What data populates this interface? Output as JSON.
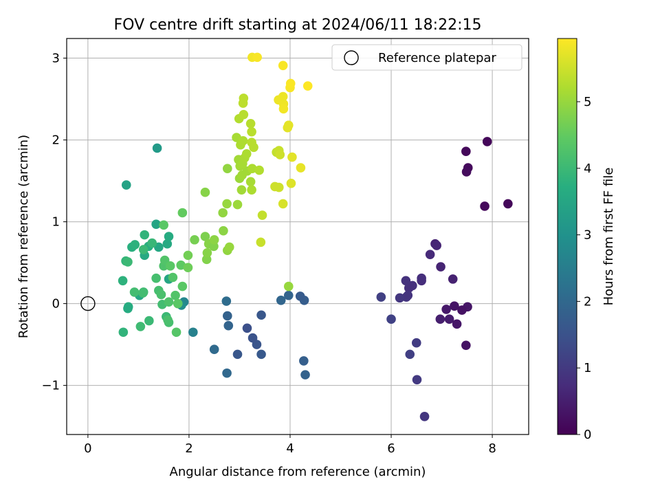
{
  "chart_data": {
    "type": "scatter",
    "title": "FOV centre drift starting at 2024/06/11 18:22:15",
    "xlabel": "Angular distance from reference (arcmin)",
    "ylabel": "Rotation from reference (arcmin)",
    "xlim": [
      -0.42,
      8.72
    ],
    "ylim": [
      -1.6,
      3.24
    ],
    "xticks": [
      "0",
      "2",
      "4",
      "6",
      "8"
    ],
    "yticks": [
      "−1",
      "0",
      "1",
      "2",
      "3"
    ],
    "grid": true,
    "legend": {
      "placement": "top-right",
      "entries": [
        {
          "label": "Reference platepar",
          "marker": "open-circle"
        }
      ]
    },
    "reference_point": {
      "x": 0,
      "y": 0
    },
    "colorbar": {
      "label": "Hours from first FF file",
      "colormap": "viridis",
      "range": [
        0,
        5.95
      ],
      "ticks": [
        "0",
        "1",
        "2",
        "3",
        "4",
        "5"
      ]
    },
    "color_label": "Hours from first FF file",
    "points": [
      {
        "x": 7.9,
        "y": 1.98,
        "t": 0.1
      },
      {
        "x": 7.48,
        "y": 1.86,
        "t": 0.12
      },
      {
        "x": 7.52,
        "y": 1.66,
        "t": 0.15
      },
      {
        "x": 7.49,
        "y": 1.61,
        "t": 0.18
      },
      {
        "x": 8.31,
        "y": 1.22,
        "t": 0.1
      },
      {
        "x": 7.85,
        "y": 1.19,
        "t": 0.14
      },
      {
        "x": 7.48,
        "y": -0.51,
        "t": 0.3
      },
      {
        "x": 7.51,
        "y": -0.04,
        "t": 0.35
      },
      {
        "x": 7.4,
        "y": -0.08,
        "t": 0.28
      },
      {
        "x": 7.25,
        "y": -0.03,
        "t": 0.32
      },
      {
        "x": 7.09,
        "y": -0.07,
        "t": 0.4
      },
      {
        "x": 7.15,
        "y": -0.19,
        "t": 0.45
      },
      {
        "x": 7.3,
        "y": -0.25,
        "t": 0.38
      },
      {
        "x": 6.97,
        "y": -0.19,
        "t": 0.5
      },
      {
        "x": 7.22,
        "y": 0.3,
        "t": 0.55
      },
      {
        "x": 6.98,
        "y": 0.45,
        "t": 0.6
      },
      {
        "x": 6.87,
        "y": 0.73,
        "t": 0.58
      },
      {
        "x": 6.9,
        "y": 0.71,
        "t": 0.62
      },
      {
        "x": 6.77,
        "y": 0.6,
        "t": 0.7
      },
      {
        "x": 6.6,
        "y": 0.28,
        "t": 0.75
      },
      {
        "x": 6.6,
        "y": 0.31,
        "t": 0.78
      },
      {
        "x": 6.42,
        "y": 0.22,
        "t": 0.82
      },
      {
        "x": 6.35,
        "y": 0.19,
        "t": 0.8
      },
      {
        "x": 6.29,
        "y": 0.28,
        "t": 0.85
      },
      {
        "x": 6.3,
        "y": 0.08,
        "t": 0.9
      },
      {
        "x": 6.33,
        "y": 0.1,
        "t": 0.88
      },
      {
        "x": 6.17,
        "y": 0.07,
        "t": 0.95
      },
      {
        "x": 6.5,
        "y": -0.48,
        "t": 1.05
      },
      {
        "x": 6.37,
        "y": -0.62,
        "t": 1.1
      },
      {
        "x": 6.51,
        "y": -0.93,
        "t": 1.0
      },
      {
        "x": 6.66,
        "y": -1.38,
        "t": 0.92
      },
      {
        "x": 6.0,
        "y": -0.19,
        "t": 1.15
      },
      {
        "x": 5.8,
        "y": 0.08,
        "t": 1.12
      },
      {
        "x": 4.3,
        "y": -0.87,
        "t": 1.85
      },
      {
        "x": 4.27,
        "y": -0.7,
        "t": 1.8
      },
      {
        "x": 4.28,
        "y": 0.04,
        "t": 1.75
      },
      {
        "x": 4.2,
        "y": 0.09,
        "t": 1.7
      },
      {
        "x": 3.97,
        "y": 0.1,
        "t": 1.9
      },
      {
        "x": 3.82,
        "y": 0.04,
        "t": 1.95
      },
      {
        "x": 3.43,
        "y": -0.62,
        "t": 1.65
      },
      {
        "x": 3.43,
        "y": -0.14,
        "t": 1.6
      },
      {
        "x": 3.34,
        "y": -0.5,
        "t": 1.55
      },
      {
        "x": 3.26,
        "y": -0.42,
        "t": 1.5
      },
      {
        "x": 3.15,
        "y": -0.3,
        "t": 1.45
      },
      {
        "x": 2.96,
        "y": -0.62,
        "t": 1.6
      },
      {
        "x": 2.76,
        "y": -0.15,
        "t": 1.85
      },
      {
        "x": 2.78,
        "y": -0.27,
        "t": 1.9
      },
      {
        "x": 2.74,
        "y": 0.03,
        "t": 2.1
      },
      {
        "x": 2.75,
        "y": -0.85,
        "t": 2.0
      },
      {
        "x": 2.5,
        "y": -0.56,
        "t": 2.05
      },
      {
        "x": 2.08,
        "y": -0.35,
        "t": 2.6
      },
      {
        "x": 1.9,
        "y": 0.02,
        "t": 2.7
      },
      {
        "x": 1.85,
        "y": -0.02,
        "t": 2.9
      },
      {
        "x": 1.37,
        "y": 1.9,
        "t": 3.2
      },
      {
        "x": 0.76,
        "y": 1.45,
        "t": 3.4
      },
      {
        "x": 1.35,
        "y": 0.97,
        "t": 3.45
      },
      {
        "x": 1.4,
        "y": 0.69,
        "t": 3.55
      },
      {
        "x": 1.57,
        "y": 0.73,
        "t": 3.6
      },
      {
        "x": 1.6,
        "y": 0.82,
        "t": 3.65
      },
      {
        "x": 1.12,
        "y": 0.59,
        "t": 3.6
      },
      {
        "x": 1.2,
        "y": 0.7,
        "t": 3.7
      },
      {
        "x": 1.6,
        "y": 0.3,
        "t": 3.5
      },
      {
        "x": 1.02,
        "y": 0.1,
        "t": 3.55
      },
      {
        "x": 0.87,
        "y": 0.69,
        "t": 3.75
      },
      {
        "x": 0.93,
        "y": 0.72,
        "t": 3.8
      },
      {
        "x": 1.12,
        "y": 0.84,
        "t": 3.85
      },
      {
        "x": 1.27,
        "y": 0.74,
        "t": 3.95
      },
      {
        "x": 1.1,
        "y": 0.66,
        "t": 4.0
      },
      {
        "x": 0.75,
        "y": 0.52,
        "t": 3.9
      },
      {
        "x": 0.79,
        "y": 0.51,
        "t": 4.0
      },
      {
        "x": 0.69,
        "y": 0.28,
        "t": 3.8
      },
      {
        "x": 0.8,
        "y": -0.04,
        "t": 3.7
      },
      {
        "x": 0.79,
        "y": -0.06,
        "t": 3.65
      },
      {
        "x": 0.7,
        "y": -0.35,
        "t": 3.85
      },
      {
        "x": 1.04,
        "y": -0.28,
        "t": 4.05
      },
      {
        "x": 1.21,
        "y": -0.21,
        "t": 4.0
      },
      {
        "x": 1.1,
        "y": 0.14,
        "t": 4.05
      },
      {
        "x": 0.92,
        "y": 0.14,
        "t": 4.1
      },
      {
        "x": 1.09,
        "y": 0.13,
        "t": 4.1
      },
      {
        "x": 1.35,
        "y": 0.31,
        "t": 4.15
      },
      {
        "x": 1.4,
        "y": 0.16,
        "t": 4.15
      },
      {
        "x": 1.45,
        "y": 0.11,
        "t": 4.2
      },
      {
        "x": 1.47,
        "y": -0.01,
        "t": 4.1
      },
      {
        "x": 1.55,
        "y": -0.16,
        "t": 4.0
      },
      {
        "x": 1.6,
        "y": -0.23,
        "t": 4.15
      },
      {
        "x": 1.58,
        "y": -0.2,
        "t": 4.2
      },
      {
        "x": 1.6,
        "y": 0.02,
        "t": 4.25
      },
      {
        "x": 1.73,
        "y": 0.1,
        "t": 4.3
      },
      {
        "x": 1.75,
        "y": -0.35,
        "t": 4.35
      },
      {
        "x": 1.78,
        "y": 0.0,
        "t": 4.4
      },
      {
        "x": 1.87,
        "y": 0.21,
        "t": 4.4
      },
      {
        "x": 1.68,
        "y": 0.32,
        "t": 4.3
      },
      {
        "x": 1.5,
        "y": 0.46,
        "t": 4.25
      },
      {
        "x": 1.52,
        "y": 0.53,
        "t": 4.3
      },
      {
        "x": 1.63,
        "y": 0.46,
        "t": 4.4
      },
      {
        "x": 1.84,
        "y": 0.47,
        "t": 4.45
      },
      {
        "x": 1.5,
        "y": 0.96,
        "t": 4.4
      },
      {
        "x": 1.87,
        "y": 1.11,
        "t": 4.5
      },
      {
        "x": 1.98,
        "y": 0.44,
        "t": 4.6
      },
      {
        "x": 1.98,
        "y": 0.59,
        "t": 4.65
      },
      {
        "x": 2.11,
        "y": 0.78,
        "t": 4.7
      },
      {
        "x": 2.32,
        "y": 0.82,
        "t": 4.75
      },
      {
        "x": 2.35,
        "y": 0.54,
        "t": 4.8
      },
      {
        "x": 2.36,
        "y": 0.62,
        "t": 4.85
      },
      {
        "x": 2.39,
        "y": 0.73,
        "t": 4.85
      },
      {
        "x": 2.49,
        "y": 0.7,
        "t": 4.8
      },
      {
        "x": 2.5,
        "y": 0.78,
        "t": 4.9
      },
      {
        "x": 2.32,
        "y": 1.36,
        "t": 4.85
      },
      {
        "x": 2.68,
        "y": 0.89,
        "t": 4.9
      },
      {
        "x": 2.76,
        "y": 0.65,
        "t": 4.95
      },
      {
        "x": 2.8,
        "y": 0.69,
        "t": 5.0
      },
      {
        "x": 2.67,
        "y": 1.11,
        "t": 4.95
      },
      {
        "x": 2.75,
        "y": 1.22,
        "t": 5.0
      },
      {
        "x": 2.76,
        "y": 1.65,
        "t": 4.95
      },
      {
        "x": 2.96,
        "y": 1.21,
        "t": 5.05
      },
      {
        "x": 3.04,
        "y": 1.39,
        "t": 5.1
      },
      {
        "x": 3.15,
        "y": 1.62,
        "t": 5.1
      },
      {
        "x": 3.0,
        "y": 1.53,
        "t": 5.05
      },
      {
        "x": 3.05,
        "y": 1.57,
        "t": 5.1
      },
      {
        "x": 3.22,
        "y": 1.49,
        "t": 5.15
      },
      {
        "x": 3.24,
        "y": 1.39,
        "t": 5.2
      },
      {
        "x": 3.25,
        "y": 1.65,
        "t": 5.2
      },
      {
        "x": 3.39,
        "y": 1.63,
        "t": 5.25
      },
      {
        "x": 2.98,
        "y": 1.76,
        "t": 5.1
      },
      {
        "x": 3.01,
        "y": 1.68,
        "t": 5.12
      },
      {
        "x": 3.06,
        "y": 1.71,
        "t": 5.15
      },
      {
        "x": 3.1,
        "y": 1.78,
        "t": 5.18
      },
      {
        "x": 3.14,
        "y": 1.83,
        "t": 5.2
      },
      {
        "x": 2.94,
        "y": 2.03,
        "t": 5.15
      },
      {
        "x": 3.02,
        "y": 1.94,
        "t": 5.2
      },
      {
        "x": 3.07,
        "y": 1.99,
        "t": 5.22
      },
      {
        "x": 3.24,
        "y": 1.97,
        "t": 5.3
      },
      {
        "x": 3.28,
        "y": 1.91,
        "t": 5.3
      },
      {
        "x": 3.24,
        "y": 2.1,
        "t": 5.32
      },
      {
        "x": 3.22,
        "y": 2.2,
        "t": 5.3
      },
      {
        "x": 2.99,
        "y": 2.26,
        "t": 5.25
      },
      {
        "x": 3.08,
        "y": 2.31,
        "t": 5.3
      },
      {
        "x": 3.07,
        "y": 2.45,
        "t": 5.35
      },
      {
        "x": 3.08,
        "y": 2.51,
        "t": 5.35
      },
      {
        "x": 3.45,
        "y": 1.08,
        "t": 5.4
      },
      {
        "x": 3.42,
        "y": 0.75,
        "t": 5.45
      },
      {
        "x": 3.97,
        "y": 0.21,
        "t": 5.0
      },
      {
        "x": 3.7,
        "y": 1.43,
        "t": 5.5
      },
      {
        "x": 3.78,
        "y": 1.42,
        "t": 5.5
      },
      {
        "x": 3.73,
        "y": 1.85,
        "t": 5.4
      },
      {
        "x": 3.78,
        "y": 1.87,
        "t": 5.45
      },
      {
        "x": 3.8,
        "y": 1.82,
        "t": 5.5
      },
      {
        "x": 3.86,
        "y": 1.22,
        "t": 5.6
      },
      {
        "x": 4.02,
        "y": 1.47,
        "t": 5.65
      },
      {
        "x": 4.04,
        "y": 1.79,
        "t": 5.7
      },
      {
        "x": 4.21,
        "y": 1.66,
        "t": 5.75
      },
      {
        "x": 3.95,
        "y": 2.15,
        "t": 5.7
      },
      {
        "x": 3.97,
        "y": 2.18,
        "t": 5.72
      },
      {
        "x": 3.77,
        "y": 2.49,
        "t": 5.8
      },
      {
        "x": 3.87,
        "y": 2.44,
        "t": 5.82
      },
      {
        "x": 3.87,
        "y": 2.38,
        "t": 5.85
      },
      {
        "x": 3.86,
        "y": 2.53,
        "t": 5.8
      },
      {
        "x": 4.0,
        "y": 2.64,
        "t": 5.9
      },
      {
        "x": 4.01,
        "y": 2.69,
        "t": 5.92
      },
      {
        "x": 4.35,
        "y": 2.66,
        "t": 5.95
      },
      {
        "x": 3.86,
        "y": 2.91,
        "t": 5.9
      },
      {
        "x": 3.25,
        "y": 3.01,
        "t": 5.85
      },
      {
        "x": 3.35,
        "y": 3.01,
        "t": 5.9
      }
    ]
  }
}
